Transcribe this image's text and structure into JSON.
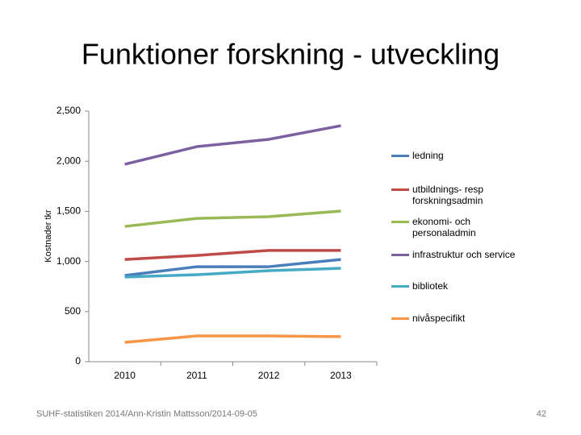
{
  "chart_data": {
    "type": "line",
    "title": "Funktioner forskning - utveckling",
    "y_label": "Kostnader tkr",
    "categories": [
      "2010",
      "2011",
      "2012",
      "2013"
    ],
    "series": [
      {
        "name": "ledning",
        "color": "#4a7ebb",
        "values": [
          860,
          948,
          948,
          1020
        ]
      },
      {
        "name": "utbildnings- resp forskningsadmin",
        "color": "#be4b48",
        "values": [
          1020,
          1060,
          1110,
          1110
        ]
      },
      {
        "name": "ekonomi- och personaladmin",
        "color": "#98b954",
        "values": [
          1350,
          1430,
          1447,
          1503
        ]
      },
      {
        "name": "infrastruktur och service",
        "color": "#7d60a0",
        "values": [
          1970,
          2146,
          2219,
          2355
        ]
      },
      {
        "name": "bibliotek",
        "color": "#46aac5",
        "values": [
          845,
          868,
          908,
          932
        ]
      },
      {
        "name": "nivåspecifikt",
        "color": "#f79646",
        "values": [
          193,
          257,
          257,
          250
        ]
      }
    ],
    "ylim": [
      0,
      2500
    ],
    "yticks": [
      0,
      500,
      {
        "value": 1000,
        "label": "1,000"
      },
      {
        "value": 1500,
        "label": "1,500"
      },
      {
        "value": 2000,
        "label": "2,000"
      },
      {
        "value": 2500,
        "label": "2,500"
      }
    ],
    "legend": "right",
    "footer": "SUHF-statistiken 2014/Ann-Kristin Mattsson/2014-09-05",
    "page_number": "42"
  }
}
